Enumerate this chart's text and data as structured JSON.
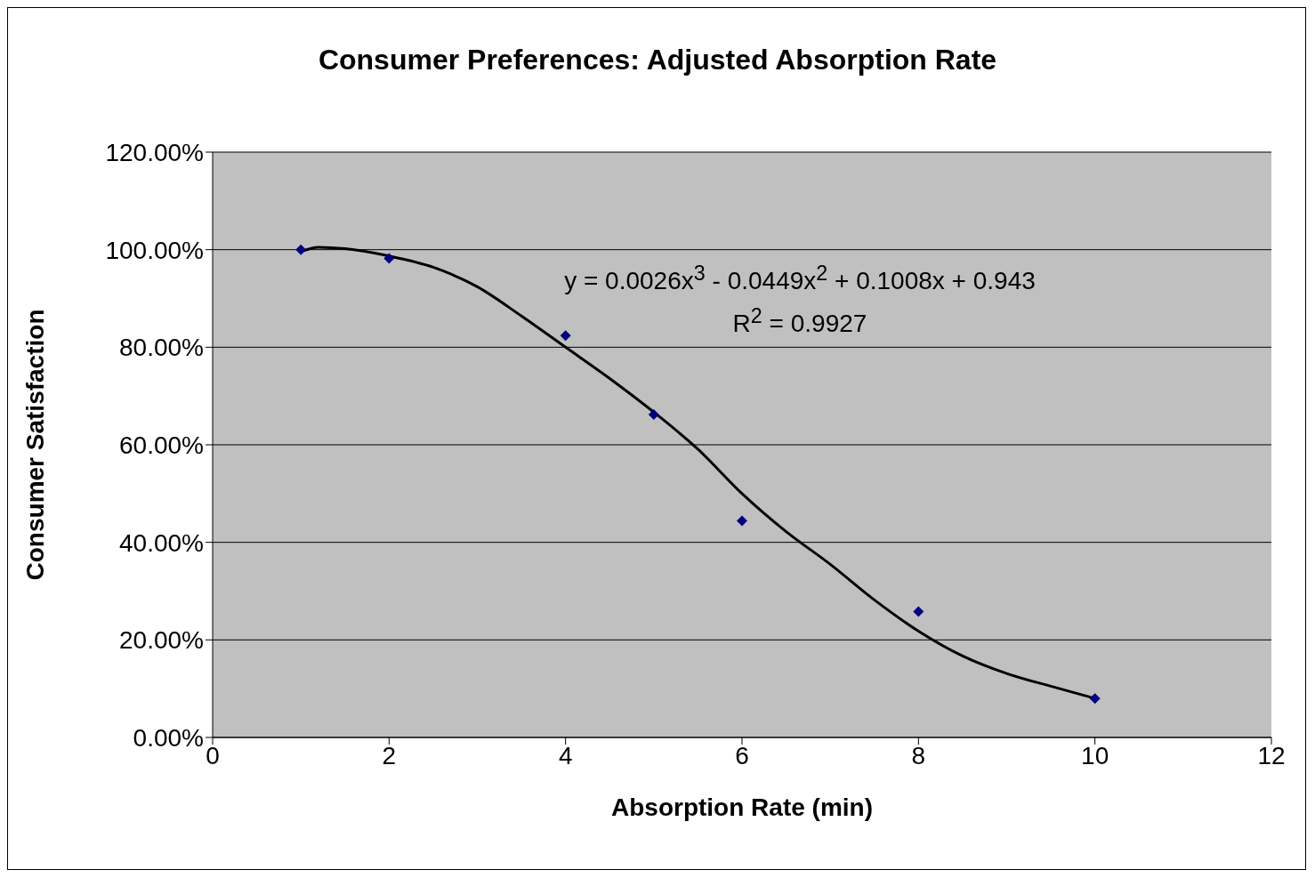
{
  "chart_data": {
    "type": "scatter",
    "title": "Consumer Preferences: Adjusted Absorption Rate",
    "xlabel": "Absorption Rate (min)",
    "ylabel": "Consumer Satisfaction",
    "xlim": [
      0,
      12
    ],
    "xticks": [
      0,
      2,
      4,
      6,
      8,
      10,
      12
    ],
    "ylim": [
      0,
      1.2
    ],
    "yticks": [
      {
        "value": 0,
        "label": "0.00%"
      },
      {
        "value": 0.2,
        "label": "20.00%"
      },
      {
        "value": 0.4,
        "label": "40.00%"
      },
      {
        "value": 0.6,
        "label": "60.00%"
      },
      {
        "value": 0.8,
        "label": "80.00%"
      },
      {
        "value": 1,
        "label": "100.00%"
      },
      {
        "value": 1.2,
        "label": "120.00%"
      }
    ],
    "grid": "y",
    "series": [
      {
        "marker": "diamond",
        "color": "#000080",
        "x": [
          1,
          2,
          4,
          5,
          6,
          8,
          10
        ],
        "values": [
          1.0,
          0.982,
          0.824,
          0.662,
          0.444,
          0.258,
          0.08
        ]
      },
      {
        "type": "line",
        "marker": "none",
        "color": "#000000",
        "line_style": "solid",
        "x": [
          1,
          1.2,
          1.5,
          2,
          2.5,
          3,
          3.5,
          4,
          4.5,
          5,
          5.5,
          6,
          6.5,
          7,
          7.5,
          8,
          8.5,
          9,
          9.5,
          10
        ],
        "values": [
          0.996,
          1.005,
          1.002,
          0.987,
          0.964,
          0.924,
          0.864,
          0.8,
          0.736,
          0.667,
          0.591,
          0.5,
          0.422,
          0.355,
          0.282,
          0.218,
          0.167,
          0.131,
          0.105,
          0.08
        ]
      }
    ],
    "annotations": [
      "y = 0.0026x$^{3}$ - 0.0449x$^{2}$ + 0.1008x + 0.943",
      "R$^{2}$ = 0.9927"
    ]
  }
}
